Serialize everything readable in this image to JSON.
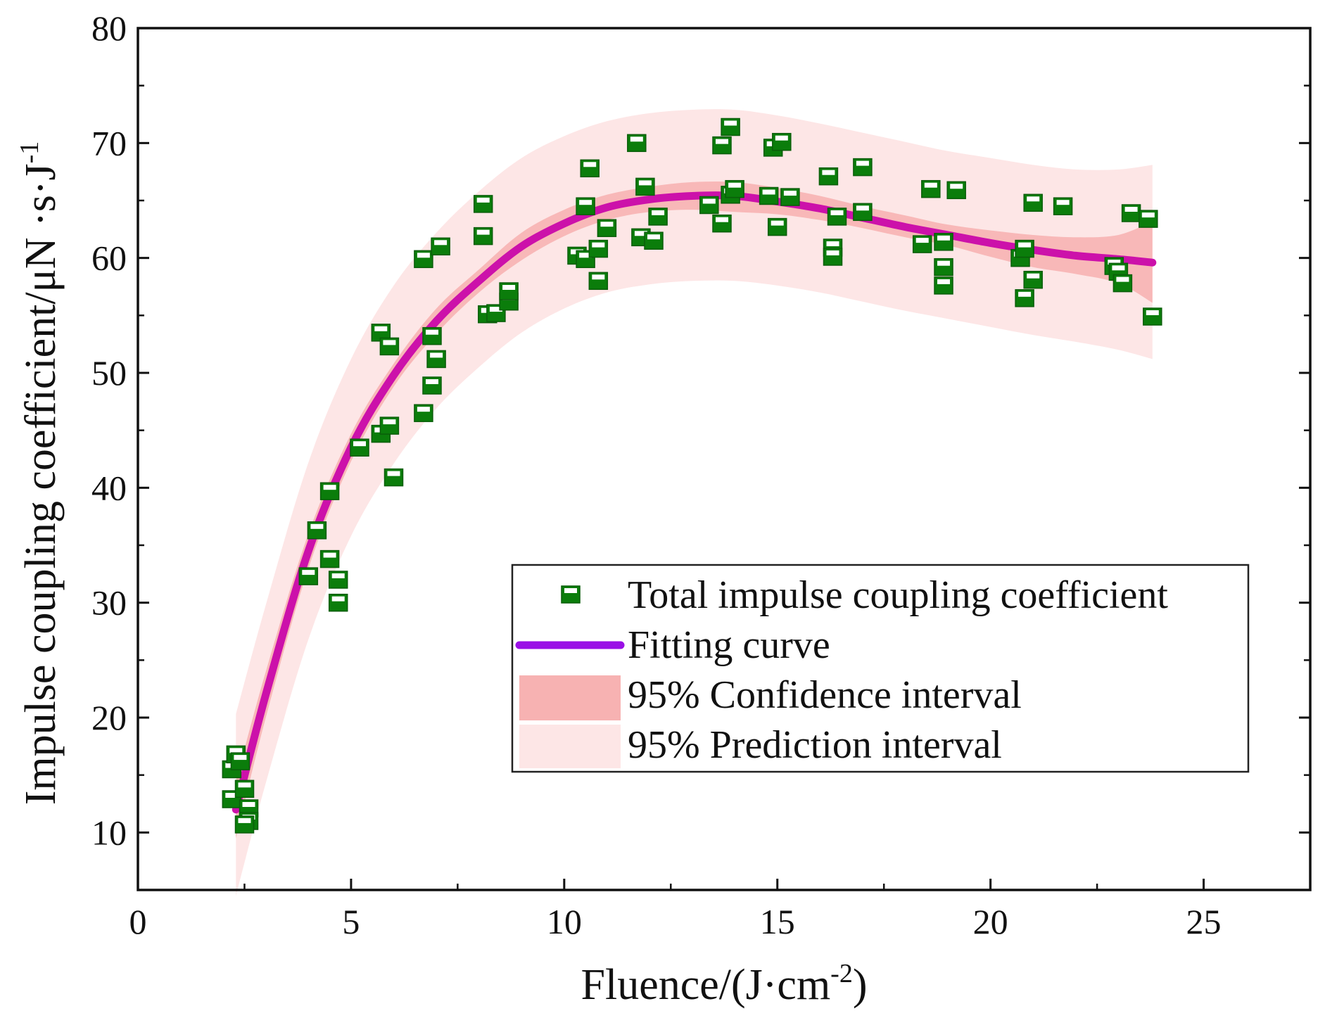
{
  "chart_data": {
    "type": "scatter",
    "title": "",
    "xlabel": "Fluence/(J·cm",
    "xlabel_sup": "-2",
    "xlabel_end": ")",
    "ylabel": "Impulse coupling coefficient/μN ·s·J",
    "ylabel_sup": "-1",
    "xlim": [
      0,
      27.5
    ],
    "ylim": [
      5,
      80
    ],
    "xticks": [
      0,
      5,
      10,
      15,
      20,
      25
    ],
    "yticks": [
      10,
      20,
      30,
      40,
      50,
      60,
      70,
      80
    ],
    "legend_position": "bottom-right",
    "colors": {
      "marker_fill": "#0b7d0b",
      "marker_highlight": "#ffffff",
      "fit": "#cc11aa",
      "fit_legend": "#9a10e6",
      "confidence": "#f7b2b2",
      "prediction": "#fde6e6",
      "axis": "#111111"
    },
    "legend": [
      {
        "key": "scatter",
        "label": "Total impulse coupling coefficient"
      },
      {
        "key": "fit",
        "label": "Fitting curve"
      },
      {
        "key": "confidence",
        "label": "95% Confidence interval"
      },
      {
        "key": "prediction",
        "label": "95% Prediction interval"
      }
    ],
    "series": [
      {
        "name": "Total impulse coupling coefficient",
        "points": [
          [
            2.2,
            12.9
          ],
          [
            2.2,
            15.5
          ],
          [
            2.3,
            16.8
          ],
          [
            2.4,
            16.2
          ],
          [
            2.5,
            13.8
          ],
          [
            2.6,
            12.1
          ],
          [
            2.6,
            11.0
          ],
          [
            2.5,
            10.7
          ],
          [
            4.0,
            32.3
          ],
          [
            4.2,
            36.3
          ],
          [
            4.5,
            33.8
          ],
          [
            4.5,
            39.7
          ],
          [
            4.7,
            32.0
          ],
          [
            4.7,
            30.0
          ],
          [
            5.2,
            43.5
          ],
          [
            5.7,
            53.5
          ],
          [
            5.7,
            44.7
          ],
          [
            5.9,
            45.4
          ],
          [
            5.9,
            52.3
          ],
          [
            6.0,
            40.9
          ],
          [
            6.7,
            46.5
          ],
          [
            6.7,
            59.9
          ],
          [
            6.9,
            53.2
          ],
          [
            6.9,
            48.9
          ],
          [
            7.0,
            51.2
          ],
          [
            7.1,
            61.0
          ],
          [
            8.1,
            64.7
          ],
          [
            8.1,
            61.9
          ],
          [
            8.2,
            55.1
          ],
          [
            8.4,
            55.2
          ],
          [
            8.7,
            56.2
          ],
          [
            8.7,
            57.1
          ],
          [
            10.3,
            60.2
          ],
          [
            10.5,
            64.5
          ],
          [
            10.5,
            59.9
          ],
          [
            10.6,
            67.8
          ],
          [
            10.8,
            60.8
          ],
          [
            10.8,
            58.0
          ],
          [
            11.0,
            62.6
          ],
          [
            11.7,
            70.0
          ],
          [
            11.8,
            61.8
          ],
          [
            11.9,
            66.2
          ],
          [
            12.1,
            61.5
          ],
          [
            12.2,
            63.6
          ],
          [
            13.4,
            64.6
          ],
          [
            13.7,
            63.0
          ],
          [
            13.7,
            69.8
          ],
          [
            13.9,
            65.5
          ],
          [
            13.9,
            71.4
          ],
          [
            14.0,
            66.0
          ],
          [
            14.8,
            65.4
          ],
          [
            14.9,
            69.6
          ],
          [
            15.0,
            62.7
          ],
          [
            15.1,
            70.1
          ],
          [
            15.3,
            65.3
          ],
          [
            16.2,
            67.1
          ],
          [
            16.3,
            60.9
          ],
          [
            16.3,
            60.1
          ],
          [
            16.4,
            63.6
          ],
          [
            17.0,
            67.9
          ],
          [
            17.0,
            64.0
          ],
          [
            18.4,
            61.2
          ],
          [
            18.6,
            66.0
          ],
          [
            18.9,
            59.2
          ],
          [
            18.9,
            57.6
          ],
          [
            18.9,
            61.4
          ],
          [
            19.2,
            65.9
          ],
          [
            20.7,
            60.0
          ],
          [
            20.8,
            60.8
          ],
          [
            20.8,
            56.5
          ],
          [
            21.0,
            64.8
          ],
          [
            21.0,
            58.1
          ],
          [
            21.7,
            64.5
          ],
          [
            22.9,
            59.3
          ],
          [
            23.0,
            58.8
          ],
          [
            23.1,
            57.8
          ],
          [
            23.3,
            63.9
          ],
          [
            23.7,
            63.4
          ],
          [
            23.8,
            54.9
          ]
        ]
      },
      {
        "name": "Fitting curve",
        "x": [
          2.3,
          3,
          4,
          5,
          6,
          7,
          8,
          9,
          10,
          11,
          12,
          13,
          14,
          15,
          16,
          17,
          18,
          19,
          20,
          21,
          22,
          23,
          23.8
        ],
        "y": [
          12.0,
          22.0,
          34.5,
          43.5,
          49.8,
          54.5,
          58.0,
          61.0,
          63.0,
          64.4,
          65.1,
          65.4,
          65.4,
          64.9,
          64.3,
          63.5,
          62.7,
          62.0,
          61.3,
          60.7,
          60.2,
          59.9,
          59.6
        ]
      },
      {
        "name": "95% Confidence interval",
        "x": [
          2.3,
          3,
          4,
          5,
          6,
          7,
          8,
          9,
          10,
          11,
          12,
          13,
          14,
          15,
          16,
          17,
          18,
          19,
          20,
          21,
          22,
          23,
          23.8
        ],
        "lower": [
          9.5,
          20.0,
          33.0,
          42.3,
          48.8,
          53.4,
          57.0,
          59.8,
          61.9,
          63.3,
          64.0,
          64.2,
          64.0,
          63.8,
          63.3,
          62.6,
          61.8,
          61.1,
          60.1,
          59.2,
          58.6,
          57.8,
          56.1
        ],
        "upper": [
          14.5,
          24.0,
          36.0,
          44.7,
          50.8,
          55.6,
          59.0,
          62.2,
          64.2,
          65.5,
          66.2,
          66.6,
          66.6,
          66.1,
          65.4,
          64.5,
          63.7,
          62.9,
          62.4,
          62.0,
          61.8,
          62.0,
          63.2
        ]
      },
      {
        "name": "95% Prediction interval",
        "x": [
          2.3,
          3,
          4,
          5,
          6,
          7,
          8,
          9,
          10,
          11,
          12,
          13,
          14,
          15,
          16,
          17,
          18,
          19,
          20,
          21,
          22,
          23,
          23.8
        ],
        "lower": [
          4.5,
          14.3,
          26.8,
          35.8,
          42.1,
          46.9,
          50.5,
          53.5,
          55.6,
          57.0,
          57.7,
          58.0,
          58.0,
          57.6,
          57.0,
          56.2,
          55.4,
          54.7,
          54.0,
          53.3,
          52.7,
          52.0,
          51.2
        ],
        "upper": [
          20.3,
          29.8,
          42.2,
          51.2,
          57.6,
          62.2,
          65.8,
          68.7,
          70.6,
          71.9,
          72.6,
          72.9,
          72.9,
          72.4,
          71.7,
          70.9,
          70.1,
          69.3,
          68.7,
          68.1,
          67.7,
          67.7,
          68.1
        ]
      }
    ]
  }
}
